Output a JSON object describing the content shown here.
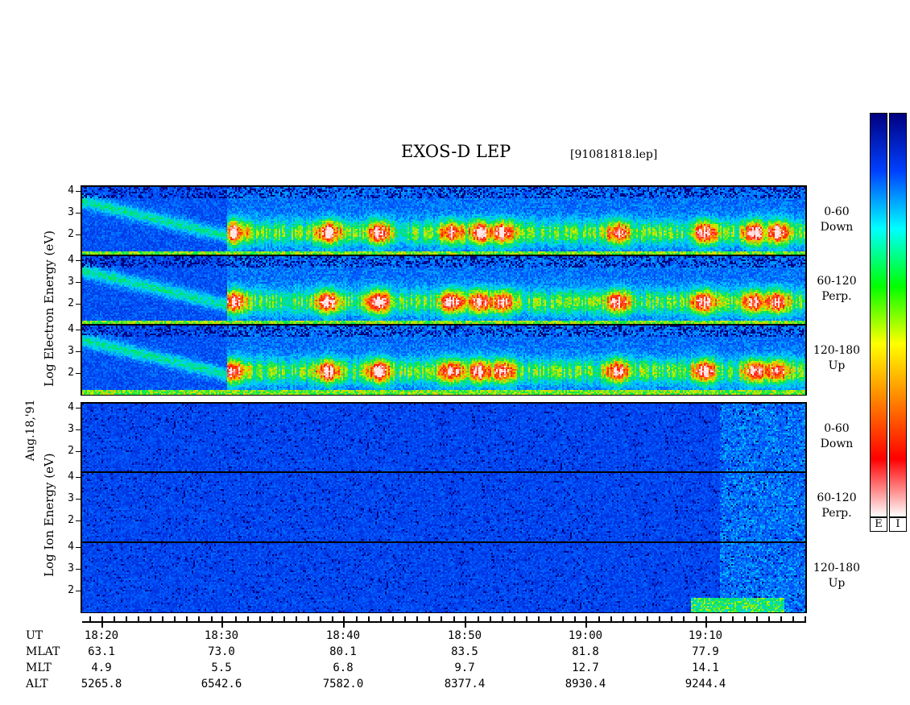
{
  "title": "EXOS-D LEP",
  "filename": "[91081818.lep]",
  "date_label": "Aug.18,'91",
  "electron_ylabel": "Log Electron Energy (eV)",
  "ion_ylabel": "Log Ion Energy (eV)",
  "colorbar_labels": [
    "E",
    "I"
  ],
  "colors": {
    "colorbar_stops": [
      "#ffffff",
      "#ff0000",
      "#ff8000",
      "#ffff00",
      "#00ff00",
      "#00ffff",
      "#0040ff",
      "#000080"
    ]
  },
  "time_axis": {
    "rows": [
      {
        "label": "UT",
        "values": [
          "18:20",
          "18:30",
          "18:40",
          "18:50",
          "19:00",
          "19:10"
        ]
      },
      {
        "label": "MLAT",
        "values": [
          "63.1",
          "73.0",
          "80.1",
          "83.5",
          "81.8",
          "77.9"
        ]
      },
      {
        "label": "MLT",
        "values": [
          "4.9",
          "5.5",
          "6.8",
          "9.7",
          "12.7",
          "14.1"
        ]
      },
      {
        "label": "ALT",
        "values": [
          "5265.8",
          "6542.6",
          "7582.0",
          "8377.4",
          "8930.4",
          "9244.4"
        ]
      }
    ]
  },
  "chart_data": {
    "type": "heatmap",
    "title": "EXOS-D LEP",
    "x_range": [
      "18:17",
      "19:18"
    ],
    "x_ticks": [
      "18:20",
      "18:30",
      "18:40",
      "18:50",
      "19:00",
      "19:10"
    ],
    "panels": [
      {
        "species": "Electron",
        "pitch_angle": "0-60",
        "direction": "Down",
        "y_ticks": [
          "2",
          "3",
          "4"
        ],
        "ylim": [
          1,
          4.2
        ]
      },
      {
        "species": "Electron",
        "pitch_angle": "60-120",
        "direction": "Perp.",
        "y_ticks": [
          "2",
          "3",
          "4"
        ],
        "ylim": [
          1,
          4.2
        ]
      },
      {
        "species": "Electron",
        "pitch_angle": "120-180",
        "direction": "Up",
        "y_ticks": [
          "2",
          "3",
          "4"
        ],
        "ylim": [
          1,
          4.2
        ]
      },
      {
        "species": "Ion",
        "pitch_angle": "0-60",
        "direction": "Down",
        "y_ticks": [
          "2",
          "3",
          "4"
        ],
        "ylim": [
          1,
          4.2
        ]
      },
      {
        "species": "Ion",
        "pitch_angle": "60-120",
        "direction": "Perp.",
        "y_ticks": [
          "2",
          "3",
          "4"
        ],
        "ylim": [
          1,
          4.2
        ]
      },
      {
        "species": "Ion",
        "pitch_angle": "120-180",
        "direction": "Up",
        "y_ticks": [
          "2",
          "3",
          "4"
        ],
        "ylim": [
          1,
          4.2
        ]
      }
    ],
    "colorbars": [
      "E",
      "I"
    ]
  }
}
